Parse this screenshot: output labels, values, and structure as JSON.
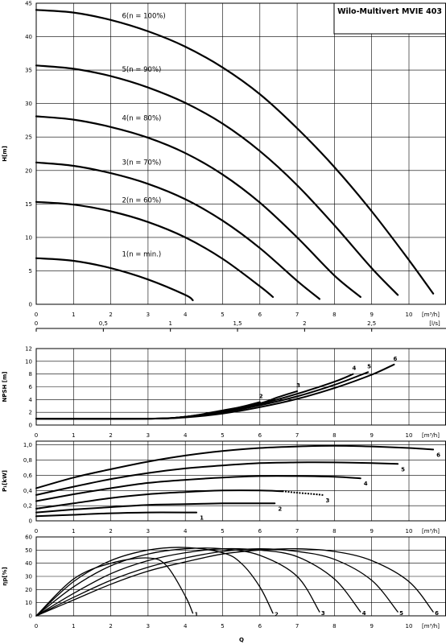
{
  "chart_data": [
    {
      "id": "head",
      "type": "line",
      "title": "Wilo-Multivert MVIE 403",
      "ylabel": "H[m]",
      "xlabel_unit": "[m³/h]",
      "x_ticks": [
        "0",
        "1",
        "2",
        "3",
        "4",
        "5",
        "6",
        "7",
        "8",
        "9",
        "10"
      ],
      "y_ticks": [
        "0",
        "5",
        "10",
        "15",
        "20",
        "25",
        "30",
        "35",
        "40",
        "45"
      ],
      "xlim": [
        0,
        11
      ],
      "ylim": [
        0,
        45
      ],
      "grid": true,
      "series": [
        {
          "name": "1(n = min.)",
          "x": [
            0,
            1,
            2,
            3,
            4,
            4.2
          ],
          "y": [
            6.9,
            6.5,
            5.4,
            3.7,
            1.4,
            0.6
          ]
        },
        {
          "name": "2(n = 60%)",
          "x": [
            0,
            1,
            2,
            3,
            4,
            5,
            6,
            6.35
          ],
          "y": [
            15.3,
            14.9,
            13.9,
            12.3,
            10.0,
            6.8,
            2.7,
            1.1
          ]
        },
        {
          "name": "3(n = 70%)",
          "x": [
            0,
            1,
            2,
            3,
            4,
            5,
            6,
            7,
            7.6
          ],
          "y": [
            21.2,
            20.7,
            19.6,
            18.0,
            15.7,
            12.5,
            8.4,
            3.5,
            0.8
          ]
        },
        {
          "name": "4(n = 80%)",
          "x": [
            0,
            1,
            2,
            3,
            4,
            5,
            6,
            7,
            8,
            8.7
          ],
          "y": [
            28.1,
            27.6,
            26.5,
            24.9,
            22.6,
            19.4,
            15.2,
            10.0,
            4.3,
            1.1
          ]
        },
        {
          "name": "5(n = 90%)",
          "x": [
            0,
            1,
            2,
            3,
            4,
            5,
            6,
            7,
            8,
            9,
            9.7
          ],
          "y": [
            35.7,
            35.2,
            34.1,
            32.4,
            30.1,
            27.0,
            22.9,
            17.8,
            11.8,
            5.4,
            1.4
          ]
        },
        {
          "name": "6(n = 100%)",
          "x": [
            0,
            1,
            2,
            3,
            4,
            5,
            6,
            7,
            8,
            9,
            10,
            10.65
          ],
          "y": [
            44.0,
            43.6,
            42.5,
            40.8,
            38.5,
            35.4,
            31.4,
            26.3,
            20.5,
            13.9,
            6.6,
            1.6
          ]
        }
      ]
    },
    {
      "id": "flow-ls",
      "type": "axis",
      "unit": "[l/s]",
      "ticks": [
        "0",
        "0,5",
        "1",
        "1,5",
        "2",
        "2,5"
      ],
      "tick_values": [
        0,
        0.5,
        1,
        1.5,
        2,
        2.5
      ],
      "xlim_m3h": [
        0,
        11
      ]
    },
    {
      "id": "npsh",
      "type": "line",
      "ylabel": "NPSH [m]",
      "xlabel_unit": "[m³/h]",
      "x_ticks": [
        "0",
        "1",
        "2",
        "3",
        "4",
        "5",
        "6",
        "7",
        "8",
        "9",
        "10"
      ],
      "y_ticks": [
        "0",
        "2",
        "4",
        "6",
        "8",
        "10",
        "12"
      ],
      "xlim": [
        0,
        11
      ],
      "ylim": [
        0,
        12
      ],
      "grid": true,
      "series": [
        {
          "name": "2",
          "x": [
            0,
            3,
            4,
            5,
            5.6,
            6.0
          ],
          "y": [
            1.0,
            1.0,
            1.3,
            2.2,
            3.0,
            3.6
          ]
        },
        {
          "name": "3",
          "x": [
            0,
            3,
            4,
            5,
            6,
            6.5,
            7.0
          ],
          "y": [
            1.0,
            1.0,
            1.3,
            2.3,
            3.4,
            4.4,
            5.3
          ]
        },
        {
          "name": "4",
          "x": [
            0,
            3,
            4,
            5,
            6,
            7,
            8,
            8.5
          ],
          "y": [
            1.0,
            1.0,
            1.3,
            2.1,
            3.3,
            4.9,
            6.8,
            8.0
          ]
        },
        {
          "name": "5",
          "x": [
            0,
            3,
            4,
            5,
            6,
            7,
            8,
            8.9
          ],
          "y": [
            1.0,
            1.0,
            1.3,
            2.0,
            3.1,
            4.5,
            6.3,
            8.3
          ]
        },
        {
          "name": "6",
          "x": [
            0,
            3,
            4,
            5,
            6,
            7,
            8,
            9,
            9.6
          ],
          "y": [
            1.0,
            1.0,
            1.2,
            1.8,
            2.8,
            4.1,
            5.8,
            7.9,
            9.5
          ]
        }
      ]
    },
    {
      "id": "power",
      "type": "line",
      "ylabel": "P₁[kW]",
      "xlabel_unit": "[m³/h]",
      "x_ticks": [
        "0",
        "1",
        "2",
        "3",
        "4",
        "5",
        "6",
        "7",
        "8",
        "9",
        "10"
      ],
      "y_ticks": [
        "0",
        "0,2",
        "0,4",
        "0,6",
        "0,8",
        "1,0"
      ],
      "xlim": [
        0,
        11
      ],
      "ylim": [
        0,
        1.05
      ],
      "grid": true,
      "series": [
        {
          "name": "1",
          "x": [
            0,
            1,
            2,
            3,
            4,
            4.3
          ],
          "y": [
            0.06,
            0.08,
            0.1,
            0.11,
            0.11,
            0.11
          ]
        },
        {
          "name": "2",
          "x": [
            0,
            1,
            2,
            3,
            4,
            5,
            6,
            6.4
          ],
          "y": [
            0.11,
            0.15,
            0.18,
            0.21,
            0.22,
            0.23,
            0.23,
            0.23
          ]
        },
        {
          "name": "3",
          "x": [
            0,
            1,
            2,
            3,
            4,
            5,
            6,
            6.6
          ],
          "y": [
            0.16,
            0.23,
            0.3,
            0.35,
            0.38,
            0.4,
            0.4,
            0.39
          ],
          "x_dashed": [
            6.6,
            7,
            7.5,
            7.7
          ],
          "y_dashed": [
            0.39,
            0.37,
            0.35,
            0.34
          ],
          "x_dashed_start": [
            0,
            0.15
          ],
          "y_dashed_start": [
            0.16,
            0.17
          ]
        },
        {
          "name": "4",
          "x": [
            0,
            1,
            2,
            3,
            4,
            5,
            6,
            7,
            8,
            8.7
          ],
          "y": [
            0.26,
            0.35,
            0.43,
            0.5,
            0.54,
            0.57,
            0.59,
            0.59,
            0.58,
            0.56
          ]
        },
        {
          "name": "5",
          "x": [
            0,
            1,
            2,
            3,
            4,
            5,
            6,
            7,
            8,
            9,
            9.7
          ],
          "y": [
            0.34,
            0.45,
            0.55,
            0.63,
            0.69,
            0.73,
            0.76,
            0.77,
            0.77,
            0.76,
            0.75
          ]
        },
        {
          "name": "6",
          "x": [
            0,
            1,
            2,
            3,
            4,
            5,
            6,
            7,
            8,
            9,
            10,
            10.65
          ],
          "y": [
            0.43,
            0.57,
            0.68,
            0.78,
            0.86,
            0.92,
            0.96,
            0.98,
            0.99,
            0.98,
            0.96,
            0.94
          ]
        }
      ]
    },
    {
      "id": "efficiency",
      "type": "line",
      "ylabel": "ηp[%]",
      "xlabel": "Q",
      "xlabel_unit": "[m³/h]",
      "x_ticks": [
        "0",
        "1",
        "2",
        "3",
        "4",
        "5",
        "6",
        "7",
        "8",
        "9",
        "10"
      ],
      "y_ticks": [
        "0",
        "10",
        "20",
        "30",
        "40",
        "50",
        "60"
      ],
      "xlim": [
        0,
        11
      ],
      "ylim": [
        0,
        60
      ],
      "grid": true,
      "series": [
        {
          "name": "1",
          "x": [
            0,
            1,
            2,
            3,
            3.5,
            4.0,
            4.2
          ],
          "y": [
            0,
            28,
            40,
            44,
            38,
            15,
            2
          ]
        },
        {
          "name": "2",
          "x": [
            0,
            1,
            2,
            3,
            4,
            5,
            5.5,
            6.0,
            6.35
          ],
          "y": [
            0,
            26,
            42,
            50,
            52,
            48,
            40,
            22,
            2
          ]
        },
        {
          "name": "3",
          "x": [
            0,
            1,
            2,
            3,
            4,
            5,
            6,
            7,
            7.6
          ],
          "y": [
            0,
            22,
            38,
            47,
            51,
            51,
            46,
            30,
            3
          ]
        },
        {
          "name": "4",
          "x": [
            0,
            1,
            2,
            3,
            4,
            5,
            6,
            7,
            8,
            8.7
          ],
          "y": [
            0,
            17,
            32,
            42,
            48,
            51,
            50,
            45,
            28,
            3
          ]
        },
        {
          "name": "5",
          "x": [
            0,
            1,
            2,
            3,
            4,
            5,
            6,
            7,
            8,
            9,
            9.7
          ],
          "y": [
            0,
            14,
            27,
            37,
            44,
            49,
            51,
            49,
            43,
            27,
            3
          ]
        },
        {
          "name": "6",
          "x": [
            0,
            1,
            2,
            3,
            4,
            5,
            6,
            7,
            8,
            9,
            10,
            10.65
          ],
          "y": [
            0,
            12,
            24,
            34,
            41,
            47,
            50,
            51,
            49,
            42,
            26,
            3
          ]
        }
      ]
    }
  ]
}
